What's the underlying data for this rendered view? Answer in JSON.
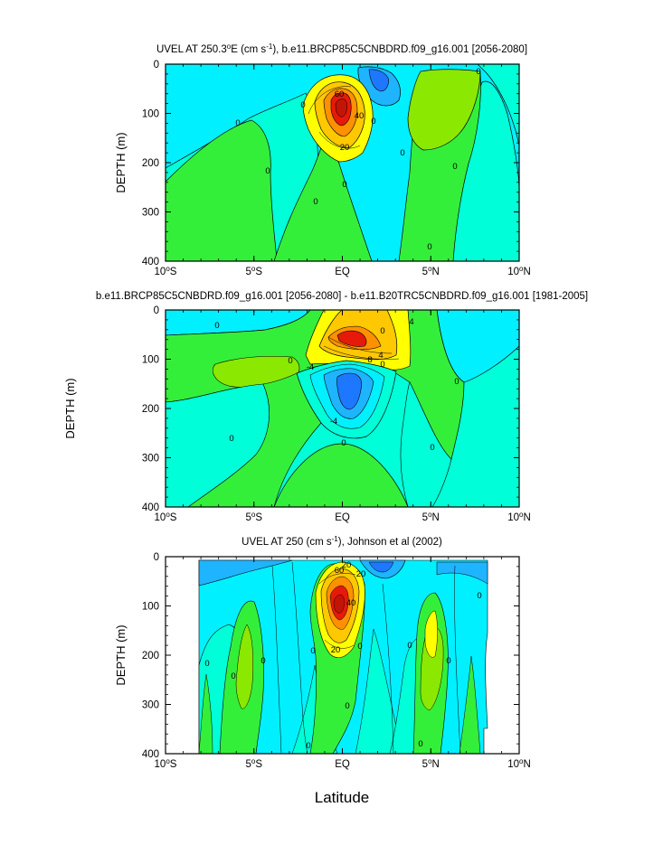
{
  "figure": {
    "xlabel": "Latitude",
    "shared_ylabel": "DEPTH (m)"
  },
  "colors": {
    "background_cyan": "#00f0ff",
    "aqua": "#00ffd8",
    "green": "#34ef3a",
    "lime": "#8be800",
    "yellow": "#ffff00",
    "gold": "#ffc800",
    "orange": "#ff9000",
    "red": "#e61a0a",
    "light_blue": "#1eb4ff",
    "blue": "#1e78ff"
  },
  "chart_data": [
    {
      "type": "contour",
      "title_main": "UVEL AT 250.3",
      "title_deg": "o",
      "title_rest": "E (cm s",
      "title_sup": "-1",
      "title_tail": "), b.e11.BRCP85C5CNBDRD.f09_g16.001 [2056-2080]",
      "ylabel": "DEPTH (m)",
      "xlabel": "",
      "x_ticks": [
        "10",
        "5",
        "EQ",
        "5",
        "10"
      ],
      "x_tick_suffix": [
        "S",
        "S",
        "",
        "N",
        "N"
      ],
      "x_range": [
        -10,
        10
      ],
      "y_ticks": [
        "0",
        "100",
        "200",
        "300",
        "400"
      ],
      "y_range": [
        0,
        400
      ],
      "contour_labels": [
        "60",
        "40",
        "20",
        "0",
        "0",
        "0",
        "0",
        "0",
        "0",
        "0",
        "0",
        "0",
        "0"
      ],
      "core_max": 60
    },
    {
      "type": "contour",
      "title_main": "b.e11.BRCP85C5CNBDRD.f09_g16.001 [2056-2080] - b.e11.B20TRC5CNBDRD.f09_g16.001 [1981-2005]",
      "ylabel": "",
      "xlabel": "",
      "x_ticks": [
        "10",
        "5",
        "EQ",
        "5",
        "10"
      ],
      "x_tick_suffix": [
        "S",
        "S",
        "",
        "N",
        "N"
      ],
      "x_range": [
        -10,
        10
      ],
      "y_ticks": [
        "0",
        "100",
        "200",
        "300",
        "400"
      ],
      "y_range": [
        0,
        400
      ],
      "contour_labels": [
        "8",
        "4",
        "4",
        "-4",
        "-4",
        "0",
        "0",
        "0",
        "0",
        "0",
        "0",
        "0",
        "0"
      ]
    },
    {
      "type": "contour",
      "title_main": "UVEL AT 250 (cm s",
      "title_sup": "-1",
      "title_tail": "), Johnson et al (2002)",
      "ylabel": "DEPTH (m)",
      "xlabel": "Latitude",
      "x_ticks": [
        "10",
        "5",
        "EQ",
        "5",
        "10"
      ],
      "x_tick_suffix": [
        "S",
        "S",
        "",
        "N",
        "N"
      ],
      "x_range": [
        -10,
        10
      ],
      "y_ticks": [
        "0",
        "100",
        "200",
        "300",
        "400"
      ],
      "y_range": [
        0,
        400
      ],
      "data_lat_range": [
        -8,
        8.2
      ],
      "contour_labels": [
        "60",
        "40",
        "20",
        "20",
        "20",
        "0",
        "0",
        "0",
        "0",
        "0",
        "0",
        "0",
        "0",
        "0",
        "0",
        "0"
      ]
    }
  ]
}
